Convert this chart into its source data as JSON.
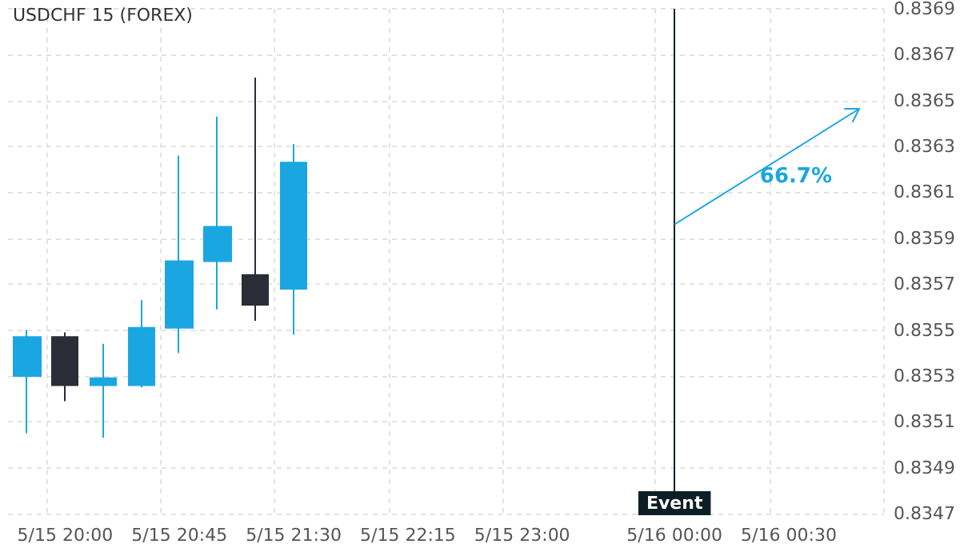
{
  "chart_data": {
    "type": "candlestick",
    "title": "USDCHF 15 (FOREX)",
    "categories": [
      null,
      "5/15 20:00",
      null,
      null,
      "5/15 20:45",
      null,
      null,
      "5/15 21:30",
      null,
      null,
      "5/15 22:15",
      null,
      null,
      "5/15 23:00",
      null,
      null,
      null,
      "5/16 00:00",
      null,
      null,
      "5/16 00:30",
      null,
      null
    ],
    "ohlc": [
      [
        0.8353,
        0.8355,
        0.83505,
        0.83547
      ],
      [
        0.83547,
        0.83549,
        0.83519,
        0.83526
      ],
      [
        0.83526,
        0.83544,
        0.83503,
        0.83529
      ],
      [
        0.83526,
        0.83563,
        0.83525,
        0.83551
      ],
      [
        0.83551,
        0.83626,
        0.8354,
        0.8358
      ],
      [
        0.8358,
        0.83643,
        0.83559,
        0.83595
      ],
      [
        0.83574,
        0.8366,
        0.83554,
        0.83561
      ],
      [
        0.83568,
        0.83631,
        0.83548,
        0.83623
      ],
      null,
      null,
      null,
      null,
      null,
      null,
      null,
      null,
      null,
      null,
      null,
      null,
      null,
      null,
      null
    ],
    "colors": [
      "#1aa7e1",
      "#2b2c36",
      "#1aa7e1",
      "#1aa7e1",
      "#1aa7e1",
      "#1aa7e1",
      "#2b2c36",
      "#1aa7e1",
      null,
      null,
      null,
      null,
      null,
      null,
      null,
      null,
      null,
      null,
      null,
      null,
      null,
      null,
      null
    ],
    "annotations": [
      "66.7%"
    ],
    "ref_lines": [
      {
        "axis": "x",
        "value": "5/16 00:00",
        "label": "Event",
        "color": "#0d1f24"
      }
    ],
    "ylim": [
      0.8347,
      0.8369
    ],
    "yticks": [
      0.8347,
      0.8349,
      0.8351,
      0.8353,
      0.8355,
      0.8357,
      0.8359,
      0.8361,
      0.8363,
      0.8365,
      0.8367,
      0.8369
    ],
    "grid": true
  }
}
